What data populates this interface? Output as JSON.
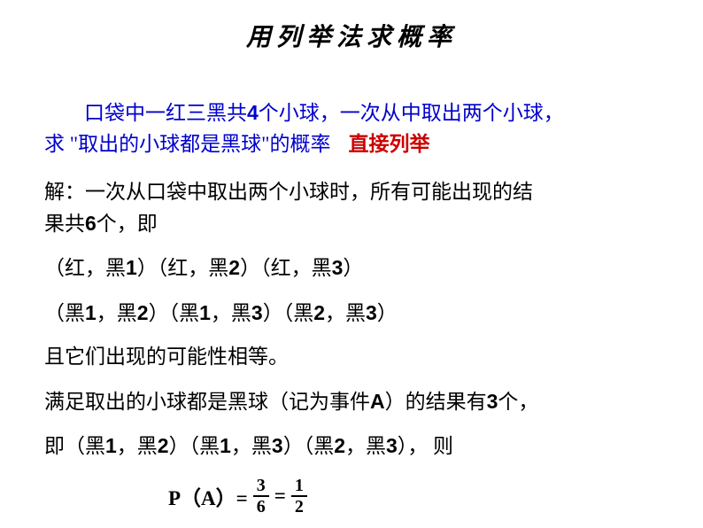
{
  "title": "用列举法求概率",
  "problem": {
    "line1_indent": "　　",
    "line1": "口袋中一红三黑共",
    "count4": "4",
    "line1_cont": "个小球，一次从中取出两个小球，",
    "line2": "求 \"取出的小球都是黑球\"的概率",
    "method": "直接列举"
  },
  "solution": {
    "intro1": "解：一次从口袋中取出两个小球时，所有可能出现的结",
    "intro2": "果共",
    "count6": "6",
    "intro2_cont": "个，即",
    "outcomes1": "（红，黑",
    "n1a": "1",
    "outcomes1b": "）（红，黑",
    "n2a": "2",
    "outcomes1c": "）（红，黑",
    "n3a": "3",
    "outcomes1d": "）",
    "outcomes2": "（黑",
    "b1": "1",
    "outcomes2b": "，黑",
    "b2": "2",
    "outcomes2c": "）（黑",
    "b3": "1",
    "outcomes2d": "，黑",
    "b4": "3",
    "outcomes2e": "）（黑",
    "b5": "2",
    "outcomes2f": "，黑",
    "b6": "3",
    "outcomes2g": "）",
    "equal": "且它们出现的可能性相等。",
    "event1": "满足取出的小球都是黑球（记为事件",
    "eventA": "A",
    "event1b": "）的结果有",
    "count3": "3",
    "event1c": "个，",
    "event2": "即（黑",
    "c1": "1",
    "event2b": "，黑",
    "c2": "2",
    "event2c": "）（黑",
    "c3": "1",
    "event2d": "，黑",
    "c4": "3",
    "event2e": "）（黑",
    "c5": "2",
    "event2f": "，黑",
    "c6": "3",
    "event2g": "）， 则"
  },
  "formula": {
    "prefix": "P（A）= ",
    "frac1_num": "3",
    "frac1_den": "6",
    "equals": " = ",
    "frac2_num": "1",
    "frac2_den": "2"
  },
  "colors": {
    "title": "#000000",
    "problem": "#0000cc",
    "method": "#cc0000",
    "solution": "#000000",
    "background": "#ffffff"
  }
}
